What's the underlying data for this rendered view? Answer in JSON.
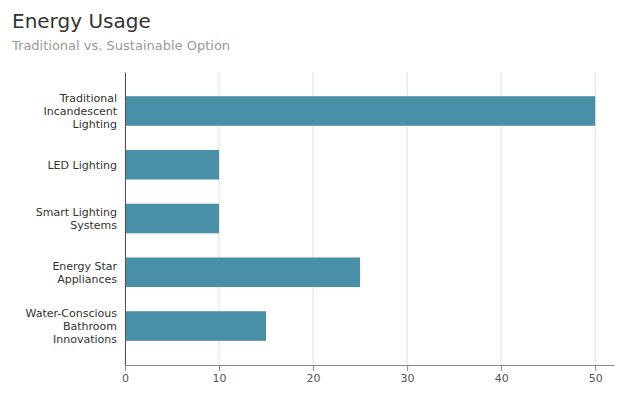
{
  "chart_data": {
    "type": "bar",
    "orientation": "horizontal",
    "title": "Energy Usage",
    "subtitle": "Traditional vs. Sustainable Option",
    "categories": [
      "Water-Conscious\nBathroom\nInnovations",
      "Energy Star\nAppliances",
      "Smart Lighting\nSystems",
      "LED Lighting",
      "Traditional\nIncandescent\nLighting"
    ],
    "values": [
      15,
      25,
      10,
      10,
      50
    ],
    "color": "#4a8fa8",
    "xlim": [
      0,
      52
    ],
    "xticks": [
      0,
      10,
      20,
      30,
      40,
      50
    ],
    "grid": true
  }
}
